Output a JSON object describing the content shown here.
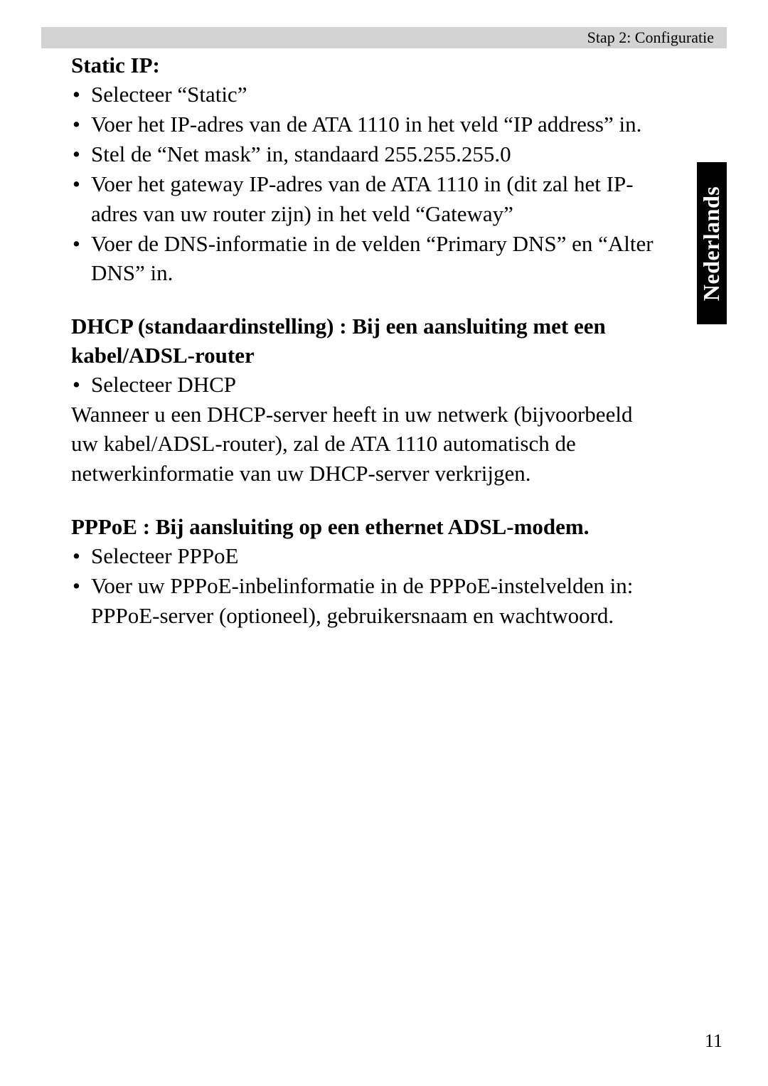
{
  "header": {
    "breadcrumb": "Stap 2: Configuratie"
  },
  "sideTab": {
    "label": "Nederlands"
  },
  "pageNumber": "11",
  "sections": {
    "staticIP": {
      "title": "Static IP:",
      "bullets": [
        "Selecteer “Static”",
        "Voer het IP-adres van de ATA 1110 in het veld “IP address” in.",
        "Stel de “Net mask” in, standaard 255.255.255.0",
        "Voer het gateway IP-adres van de ATA 1110 in (dit zal het IP-adres van uw router zijn) in het veld “Gateway”",
        "Voer de DNS-informatie in de velden “Primary DNS” en “Alter DNS” in."
      ]
    },
    "dhcp": {
      "title": "DHCP (standaardinstelling) : Bij een aansluiting met een kabel/ADSL-router",
      "bullets": [
        "Selecteer DHCP"
      ],
      "paragraph": "Wanneer u een DHCP-server heeft in uw netwerk (bijvoorbeeld uw kabel/ADSL-router), zal de ATA 1110 automatisch de netwerkinformatie van uw DHCP-server verkrijgen."
    },
    "pppoe": {
      "title": "PPPoE : Bij aansluiting op een ethernet ADSL-modem.",
      "bullets": [
        "Selecteer PPPoE",
        "Voer uw PPPoE-inbelinformatie in de PPPoE-instelvelden in: PPPoE-server (optioneel), gebruikersnaam en wachtwoord."
      ]
    }
  }
}
